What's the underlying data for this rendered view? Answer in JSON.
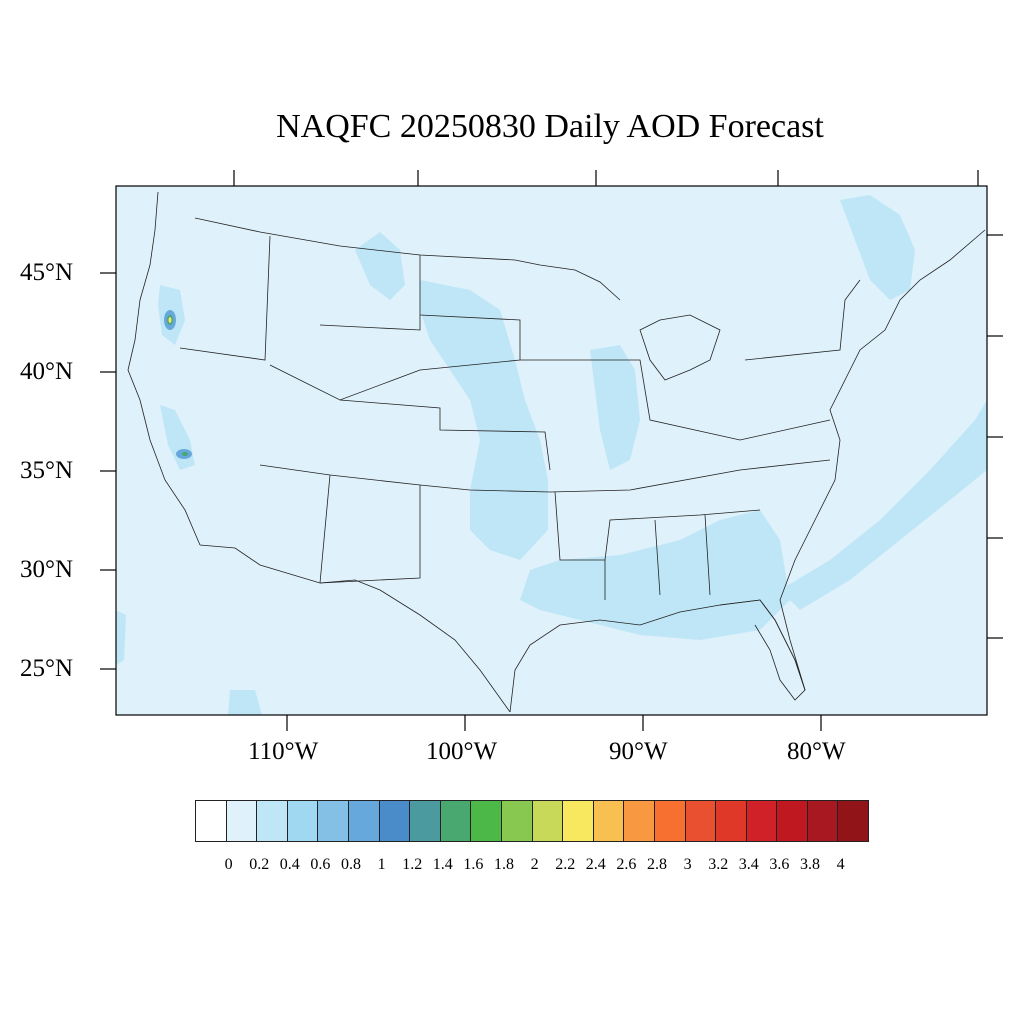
{
  "title": "NAQFC 20250830 Daily AOD Forecast",
  "map": {
    "background_color": "#dff1fa",
    "lat_labels": [
      "45°N",
      "40°N",
      "35°N",
      "30°N",
      "25°N"
    ],
    "lon_labels": [
      "110°W",
      "100°W",
      "90°W",
      "80°W"
    ]
  },
  "colorbar": {
    "levels": [
      "0",
      "0.2",
      "0.4",
      "0.6",
      "0.8",
      "1",
      "1.2",
      "1.4",
      "1.6",
      "1.8",
      "2",
      "2.2",
      "2.4",
      "2.6",
      "2.8",
      "3",
      "3.2",
      "3.4",
      "3.6",
      "3.8",
      "4"
    ],
    "colors": [
      "#ffffff",
      "#dff1fa",
      "#bfe6f7",
      "#a0d8f2",
      "#84c0e6",
      "#66a8dc",
      "#4a8cca",
      "#4a9aa0",
      "#48a870",
      "#4cb848",
      "#88c850",
      "#c8d858",
      "#f8e860",
      "#f8c050",
      "#f89840",
      "#f87030",
      "#e85030",
      "#e03828",
      "#d02028",
      "#c01820",
      "#a81820",
      "#901418"
    ]
  }
}
